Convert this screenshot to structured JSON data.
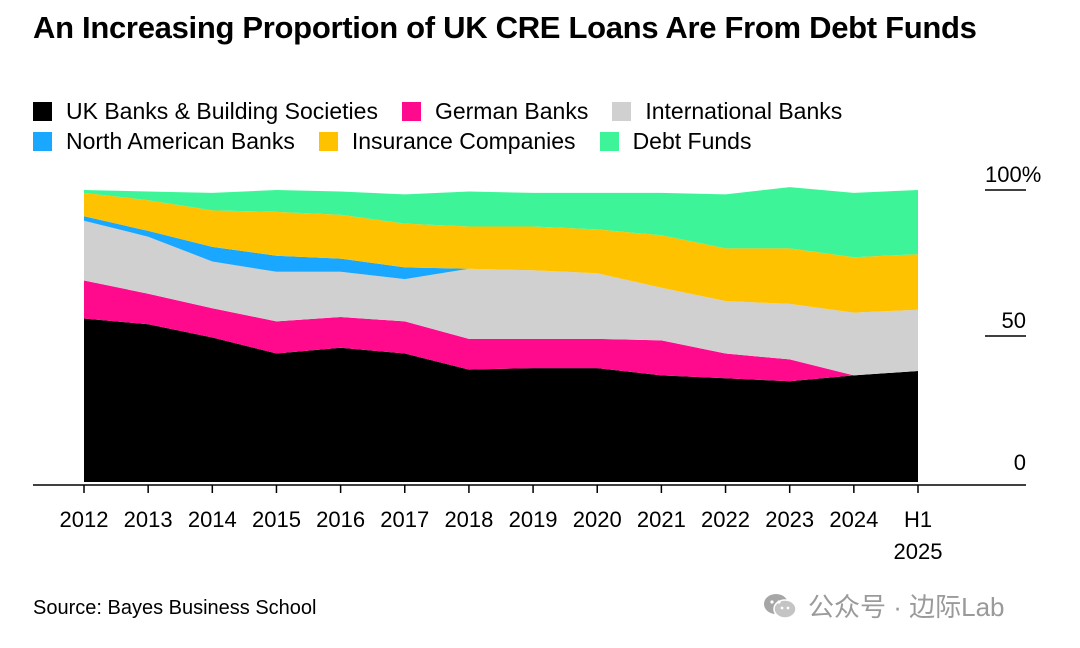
{
  "title": "An Increasing Proportion of UK CRE Loans Are From Debt Funds",
  "source": "Source: Bayes Business School",
  "watermark": "公众号 · 边际Lab",
  "chart_data": {
    "type": "area",
    "stacked": true,
    "title": "An Increasing Proportion of UK CRE Loans Are From Debt Funds",
    "categories": [
      "2012",
      "2013",
      "2014",
      "2015",
      "2016",
      "2017",
      "2018",
      "2019",
      "2020",
      "2021",
      "2022",
      "2023",
      "2024",
      "H1 2025"
    ],
    "category_lines": [
      [
        "2012"
      ],
      [
        "2013"
      ],
      [
        "2014"
      ],
      [
        "2015"
      ],
      [
        "2016"
      ],
      [
        "2017"
      ],
      [
        "2018"
      ],
      [
        "2019"
      ],
      [
        "2020"
      ],
      [
        "2021"
      ],
      [
        "2022"
      ],
      [
        "2023"
      ],
      [
        "2024"
      ],
      [
        "H1",
        "2025"
      ]
    ],
    "y_ticks": [
      {
        "value": 0,
        "label": "0"
      },
      {
        "value": 50,
        "label": "50"
      },
      {
        "value": 100,
        "label": "100%"
      }
    ],
    "ylim": [
      0,
      100
    ],
    "y_axis_position": "right",
    "legend_position": "top",
    "series": [
      {
        "name": "UK Banks & Building Societies",
        "color": "#000000",
        "values": [
          56,
          54,
          49.5,
          44,
          46,
          44,
          38.5,
          39,
          39,
          36.5,
          35.5,
          34.5,
          36.5,
          38
        ]
      },
      {
        "name": "German Banks",
        "color": "#ff0a8c",
        "values": [
          13,
          10.5,
          10,
          11,
          10.5,
          11,
          10.5,
          10,
          10,
          12,
          8.5,
          7.5,
          0,
          0
        ]
      },
      {
        "name": "International Banks",
        "color": "#d0d0d0",
        "values": [
          20.5,
          19.5,
          16,
          17,
          15.5,
          14.5,
          24,
          23.5,
          22.5,
          18,
          18,
          19,
          21.5,
          21
        ]
      },
      {
        "name": "North American Banks",
        "color": "#1aa7ff",
        "values": [
          1.5,
          2,
          5,
          5.5,
          4.5,
          4,
          0,
          0,
          0,
          0,
          0,
          0,
          0,
          0
        ]
      },
      {
        "name": "Insurance Companies",
        "color": "#ffc200",
        "values": [
          8,
          10.5,
          12.5,
          15,
          15,
          15,
          14.5,
          15,
          15,
          18,
          18,
          19,
          19,
          19
        ]
      },
      {
        "name": "Debt Funds",
        "color": "#3df598",
        "values": [
          1,
          3,
          6,
          7.5,
          8,
          10,
          12,
          11.5,
          12.5,
          14.5,
          18.5,
          21,
          22,
          22
        ]
      }
    ]
  }
}
